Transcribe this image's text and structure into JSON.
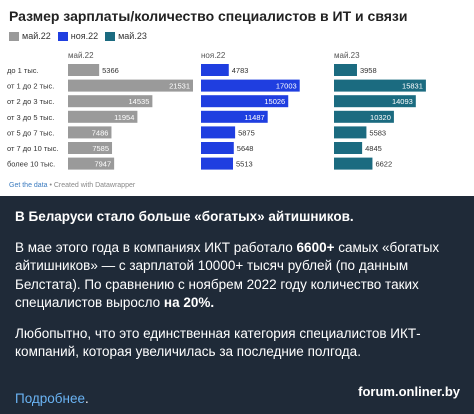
{
  "chart": {
    "title": "Размер зарплаты/количество специалистов в ИТ и связи",
    "footer_link": "Get the data",
    "footer_text": " • Created with Datawrapper",
    "colors": {
      "may22": "#9a9a9a",
      "nov22": "#1f3ee0",
      "may23": "#1b6b80"
    }
  },
  "chart_data": {
    "type": "bar",
    "categories": [
      "до 1 тыс.",
      "от 1 до 2 тыс.",
      "от 2 до 3 тыс.",
      "от 3 до 5 тыс.",
      "от 5 до 7 тыс.",
      "от 7 до 10 тыс.",
      "более 10 тыс."
    ],
    "series": [
      {
        "name": "май.22",
        "values": [
          5366,
          21531,
          14535,
          11954,
          7486,
          7585,
          7947
        ]
      },
      {
        "name": "ноя.22",
        "values": [
          4783,
          17003,
          15026,
          11487,
          5875,
          5648,
          5513
        ]
      },
      {
        "name": "май.23",
        "values": [
          3958,
          15831,
          14093,
          10320,
          5583,
          4845,
          6622
        ]
      }
    ],
    "panel_titles": [
      "май.22",
      "ноя.22",
      "май.23"
    ],
    "xlim": [
      0,
      21531
    ]
  },
  "post": {
    "title": "В Беларуси стало больше «богатых» айтишников.",
    "p2_a": "В мае этого года в компаниях ИКТ работало ",
    "p2_b": "6600+",
    "p2_c": " самых «богатых айтишников» — с зарплатой 10000+ тысяч рублей (по данным Белстата). По сравнению с ноябрем 2022 году количество таких специалистов выросло ",
    "p2_d": "на 20%.",
    "p3": "Любопытно, что это единственная категория специалистов ИКТ-компаний, которая увеличилась за последние полгода.",
    "more": "Подробнее",
    "more_dot": ".",
    "watermark": "forum.onliner.by"
  }
}
